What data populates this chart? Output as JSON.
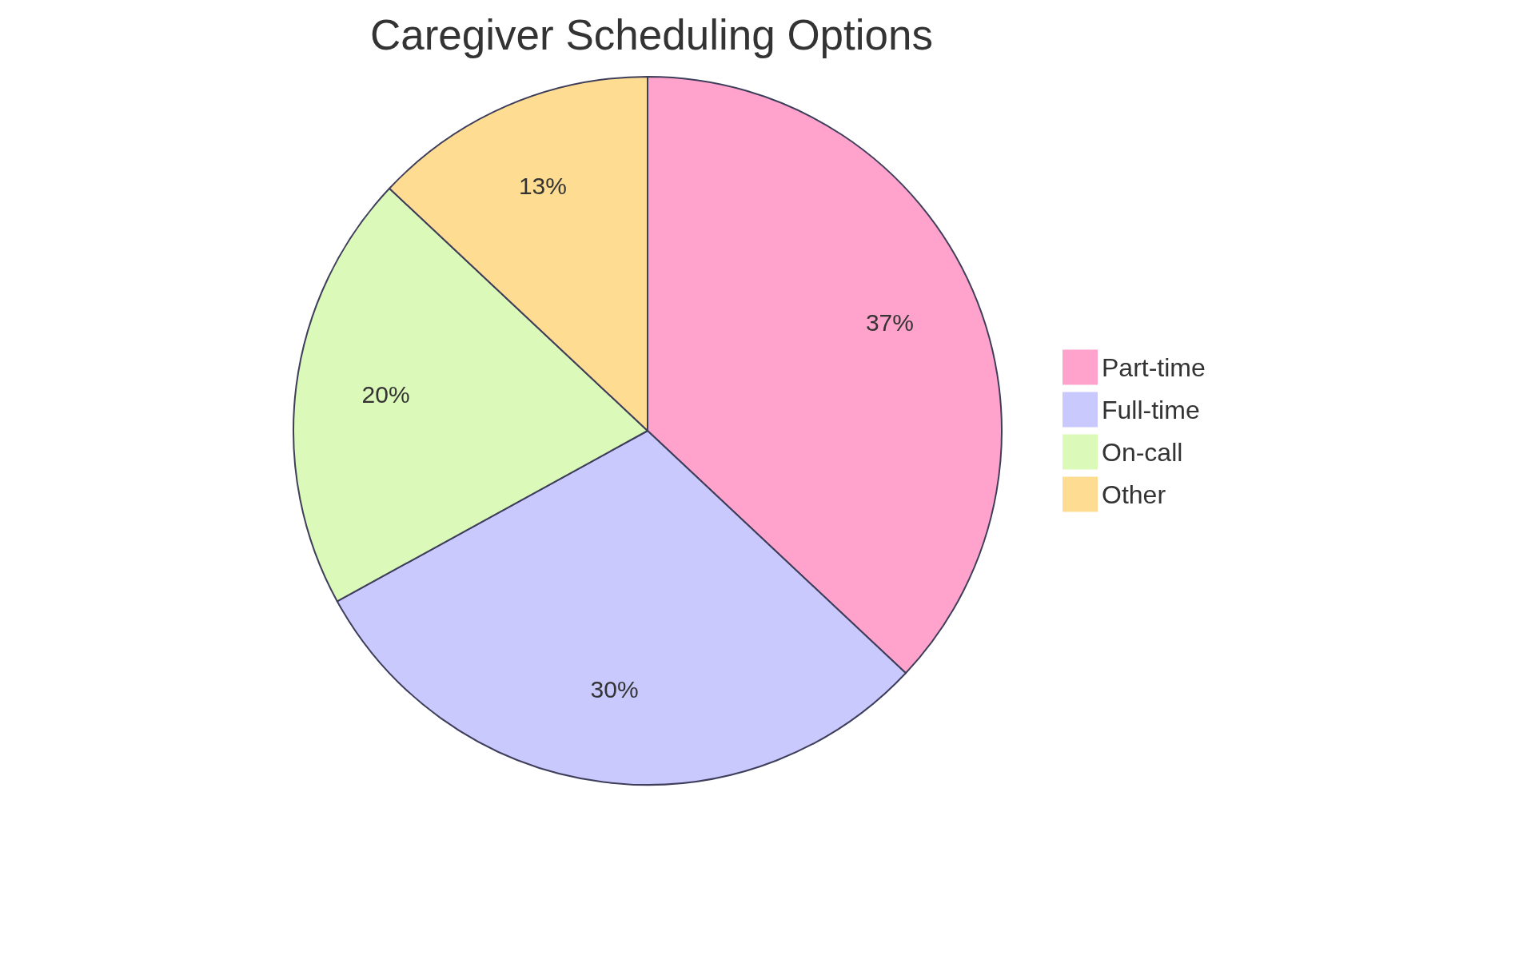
{
  "chart_data": {
    "type": "pie",
    "title": "Caregiver Scheduling Options",
    "categories": [
      "Part-time",
      "Full-time",
      "On-call",
      "Other"
    ],
    "values": [
      37,
      30,
      20,
      13
    ],
    "colors": [
      "#ffa3cd",
      "#c9c9fe",
      "#dbf9b9",
      "#fedd93"
    ],
    "value_labels": [
      "37%",
      "30%",
      "20%",
      "13%"
    ],
    "legend": "right"
  }
}
